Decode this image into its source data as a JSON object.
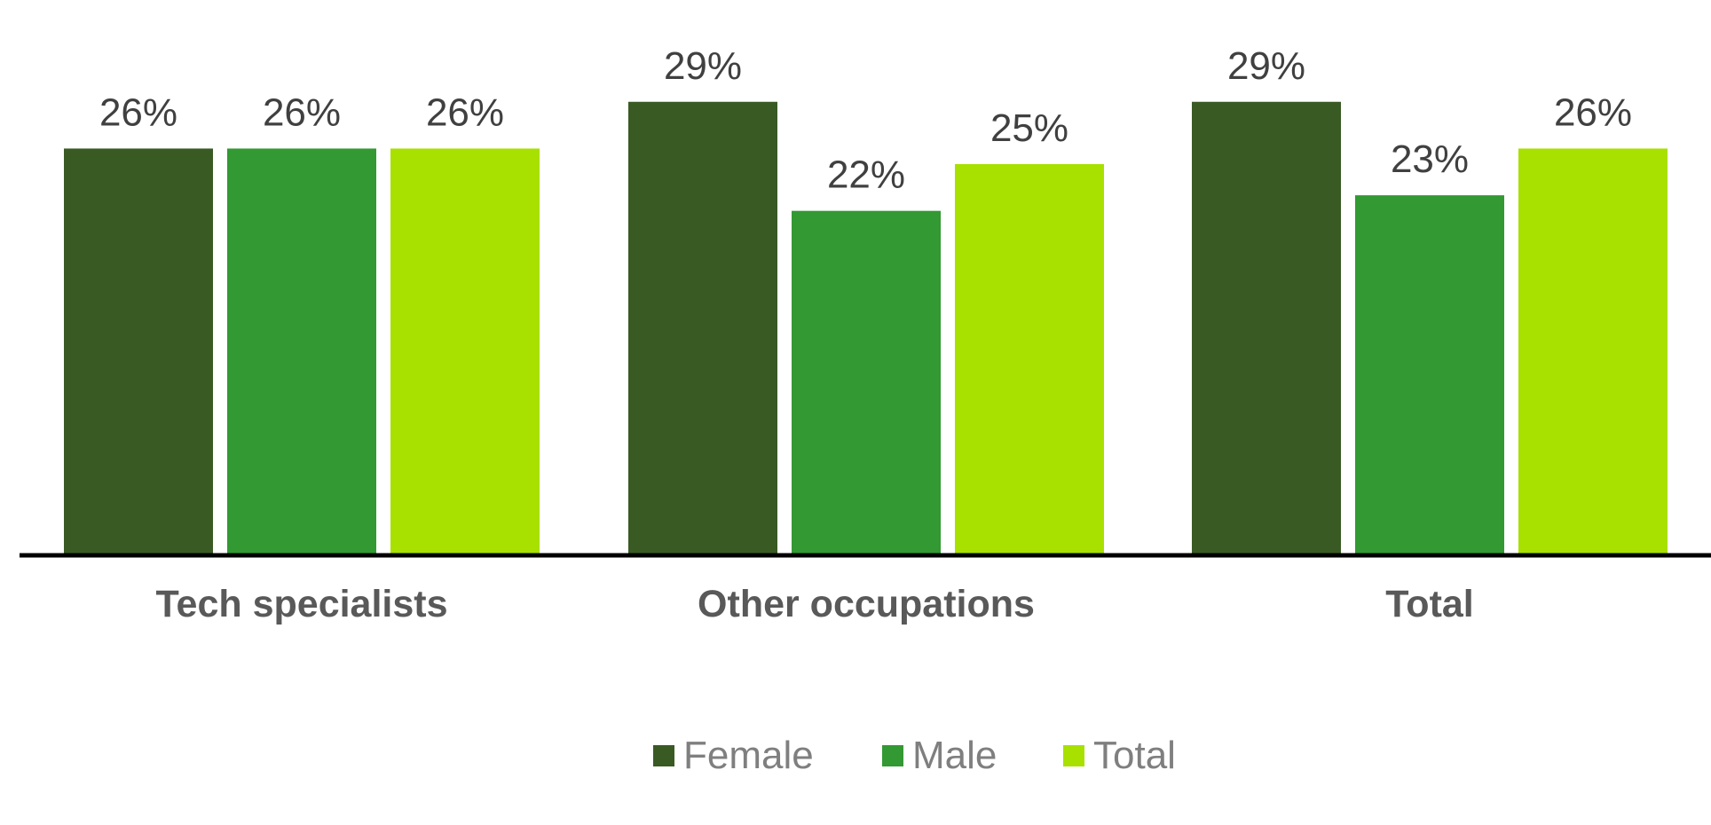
{
  "chart_data": {
    "type": "bar",
    "categories": [
      "Tech specialists",
      "Other occupations",
      "Total"
    ],
    "series": [
      {
        "name": "Female",
        "color": "#3a5a24",
        "values": [
          26,
          29,
          29
        ],
        "labels": [
          "26%",
          "29%",
          "29%"
        ]
      },
      {
        "name": "Male",
        "color": "#339933",
        "values": [
          26,
          22,
          23
        ],
        "labels": [
          "26%",
          "22%",
          "23%"
        ]
      },
      {
        "name": "Total",
        "color": "#a8e000",
        "values": [
          26,
          25,
          26
        ],
        "labels": [
          "26%",
          "25%",
          "26%"
        ]
      }
    ],
    "value_unit": "%",
    "ylim": [
      0,
      35
    ],
    "grid": false,
    "legend_position": "bottom-center",
    "baseline_color": "#000000"
  }
}
